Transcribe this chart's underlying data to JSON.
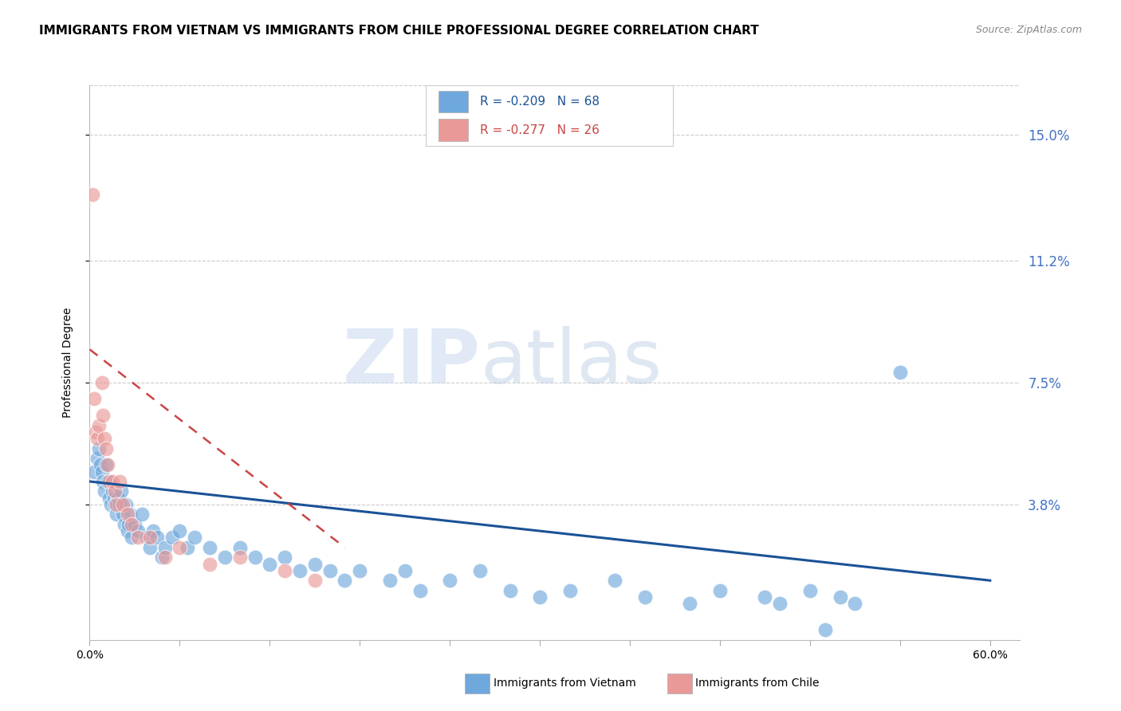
{
  "title": "IMMIGRANTS FROM VIETNAM VS IMMIGRANTS FROM CHILE PROFESSIONAL DEGREE CORRELATION CHART",
  "source": "Source: ZipAtlas.com",
  "ylabel": "Professional Degree",
  "xlim": [
    0.0,
    0.62
  ],
  "ylim": [
    -0.003,
    0.165
  ],
  "yticks": [
    0.038,
    0.075,
    0.112,
    0.15
  ],
  "ytick_labels": [
    "3.8%",
    "7.5%",
    "11.2%",
    "15.0%"
  ],
  "xticks": [
    0.0,
    0.06,
    0.12,
    0.18,
    0.24,
    0.3,
    0.36,
    0.42,
    0.48,
    0.54,
    0.6
  ],
  "vietnam_color": "#6fa8dc",
  "chile_color": "#ea9999",
  "vietnam_line_color": "#1a5296",
  "chile_line_color": "#cc4444",
  "legend_R_vietnam": "R = -0.209",
  "legend_N_vietnam": "N = 68",
  "legend_R_chile": "R = -0.277",
  "legend_N_chile": "N = 26",
  "label_vietnam": "Immigrants from Vietnam",
  "label_chile": "Immigrants from Chile",
  "watermark_zip": "ZIP",
  "watermark_atlas": "atlas",
  "background_color": "#ffffff",
  "grid_color": "#cccccc",
  "right_axis_color": "#4472c4",
  "title_fontsize": 11,
  "axis_label_fontsize": 10,
  "tick_fontsize": 10,
  "vietnam_x": [
    0.003,
    0.005,
    0.006,
    0.007,
    0.008,
    0.009,
    0.01,
    0.011,
    0.012,
    0.013,
    0.014,
    0.015,
    0.016,
    0.017,
    0.018,
    0.019,
    0.02,
    0.021,
    0.022,
    0.023,
    0.024,
    0.025,
    0.026,
    0.027,
    0.028,
    0.03,
    0.032,
    0.035,
    0.038,
    0.04,
    0.042,
    0.045,
    0.048,
    0.05,
    0.055,
    0.06,
    0.065,
    0.07,
    0.08,
    0.09,
    0.1,
    0.11,
    0.12,
    0.13,
    0.14,
    0.15,
    0.16,
    0.17,
    0.18,
    0.2,
    0.21,
    0.22,
    0.24,
    0.26,
    0.28,
    0.3,
    0.32,
    0.35,
    0.37,
    0.4,
    0.42,
    0.45,
    0.46,
    0.48,
    0.49,
    0.5,
    0.51,
    0.54
  ],
  "vietnam_y": [
    0.048,
    0.052,
    0.055,
    0.05,
    0.048,
    0.045,
    0.042,
    0.05,
    0.045,
    0.04,
    0.038,
    0.042,
    0.04,
    0.038,
    0.035,
    0.04,
    0.038,
    0.042,
    0.035,
    0.032,
    0.038,
    0.03,
    0.032,
    0.035,
    0.028,
    0.032,
    0.03,
    0.035,
    0.028,
    0.025,
    0.03,
    0.028,
    0.022,
    0.025,
    0.028,
    0.03,
    0.025,
    0.028,
    0.025,
    0.022,
    0.025,
    0.022,
    0.02,
    0.022,
    0.018,
    0.02,
    0.018,
    0.015,
    0.018,
    0.015,
    0.018,
    0.012,
    0.015,
    0.018,
    0.012,
    0.01,
    0.012,
    0.015,
    0.01,
    0.008,
    0.012,
    0.01,
    0.008,
    0.012,
    0.0,
    0.01,
    0.008,
    0.078
  ],
  "chile_x": [
    0.002,
    0.003,
    0.004,
    0.005,
    0.006,
    0.008,
    0.009,
    0.01,
    0.011,
    0.012,
    0.013,
    0.015,
    0.017,
    0.018,
    0.02,
    0.022,
    0.025,
    0.028,
    0.032,
    0.04,
    0.05,
    0.06,
    0.08,
    0.1,
    0.13,
    0.15
  ],
  "chile_y": [
    0.132,
    0.07,
    0.06,
    0.058,
    0.062,
    0.075,
    0.065,
    0.058,
    0.055,
    0.05,
    0.045,
    0.045,
    0.042,
    0.038,
    0.045,
    0.038,
    0.035,
    0.032,
    0.028,
    0.028,
    0.022,
    0.025,
    0.02,
    0.022,
    0.018,
    0.015
  ],
  "vietnam_line_x": [
    0.0,
    0.6
  ],
  "vietnam_line_y": [
    0.045,
    0.015
  ],
  "chile_line_x": [
    0.0,
    0.17
  ],
  "chile_line_y": [
    0.085,
    0.025
  ]
}
